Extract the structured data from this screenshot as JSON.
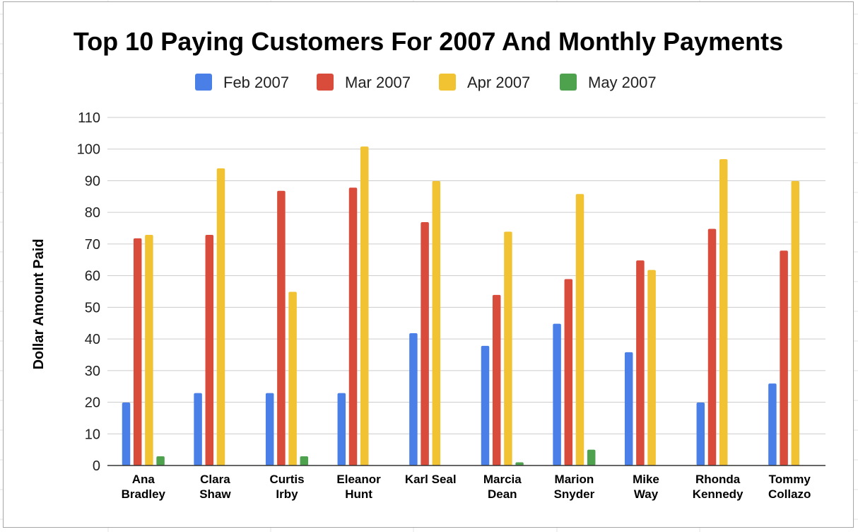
{
  "chart_data": {
    "type": "bar",
    "title": "Top 10 Paying Customers For 2007 And Monthly Payments",
    "xlabel": "",
    "ylabel": "Dollar Amount Paid",
    "ylim": [
      0,
      110
    ],
    "yticks": [
      "0",
      "10",
      "20",
      "30",
      "40",
      "50",
      "60",
      "70",
      "80",
      "90",
      "100",
      "110"
    ],
    "grid": true,
    "legend_position": "top",
    "categories": [
      [
        "Ana",
        "Bradley"
      ],
      [
        "Clara",
        "Shaw"
      ],
      [
        "Curtis",
        "Irby"
      ],
      [
        "Eleanor",
        "Hunt"
      ],
      [
        "Karl Seal"
      ],
      [
        "Marcia",
        "Dean"
      ],
      [
        "Marion",
        "Snyder"
      ],
      [
        "Mike",
        "Way"
      ],
      [
        "Rhonda",
        "Kennedy"
      ],
      [
        "Tommy",
        "Collazo"
      ]
    ],
    "series": [
      {
        "name": "Feb 2007",
        "color": "#4a7fe8",
        "values": [
          19.9,
          22.9,
          22.9,
          22.9,
          41.8,
          37.8,
          44.8,
          35.8,
          19.9,
          25.9
        ]
      },
      {
        "name": "Mar 2007",
        "color": "#d94b3a",
        "values": [
          71.8,
          72.9,
          86.8,
          87.8,
          76.9,
          53.9,
          58.9,
          64.8,
          74.8,
          67.9
        ]
      },
      {
        "name": "Apr 2007",
        "color": "#f1c232",
        "values": [
          72.9,
          93.9,
          54.9,
          100.8,
          89.9,
          73.9,
          85.8,
          61.8,
          96.8,
          89.9
        ]
      },
      {
        "name": "May 2007",
        "color": "#4ea24e",
        "values": [
          2.9,
          0,
          2.9,
          0,
          0,
          1.0,
          5.0,
          0,
          0,
          0
        ]
      }
    ]
  }
}
